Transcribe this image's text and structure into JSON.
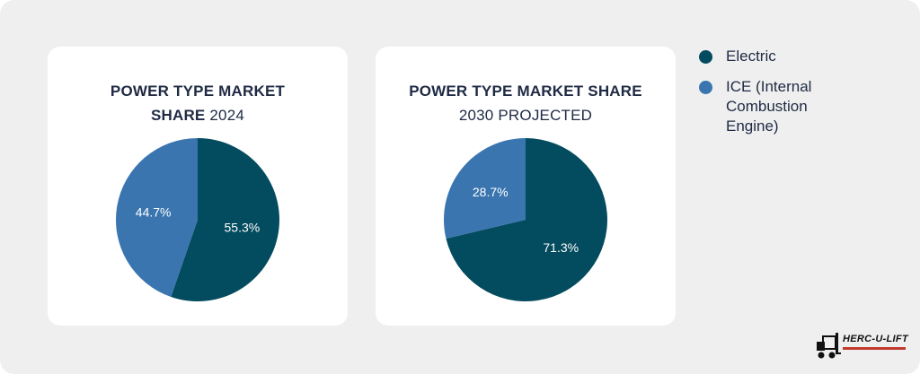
{
  "colors": {
    "electric": "#034b5e",
    "ice": "#3a75b0",
    "title": "#1f2a44"
  },
  "chart_data": [
    {
      "type": "pie",
      "title_bold": "POWER TYPE MARKET SHARE",
      "title_rest": "2024",
      "slices": [
        {
          "name": "Electric",
          "value": 55.3,
          "label": "55.3%"
        },
        {
          "name": "ICE (Internal Combustion Engine)",
          "value": 44.7,
          "label": "44.7%"
        }
      ]
    },
    {
      "type": "pie",
      "title_bold": "POWER TYPE MARKET SHARE",
      "title_rest": "2030 PROJECTED",
      "slices": [
        {
          "name": "Electric",
          "value": 71.3,
          "label": "71.3%"
        },
        {
          "name": "ICE (Internal Combustion Engine)",
          "value": 28.7,
          "label": "28.7%"
        }
      ]
    }
  ],
  "legend": [
    {
      "label": "Electric",
      "color": "#034b5e"
    },
    {
      "label": "ICE (Internal Combustion Engine)",
      "color": "#3a75b0"
    }
  ],
  "logo": {
    "text": "HERC-U-LIFT",
    "icon": "forklift-icon"
  }
}
